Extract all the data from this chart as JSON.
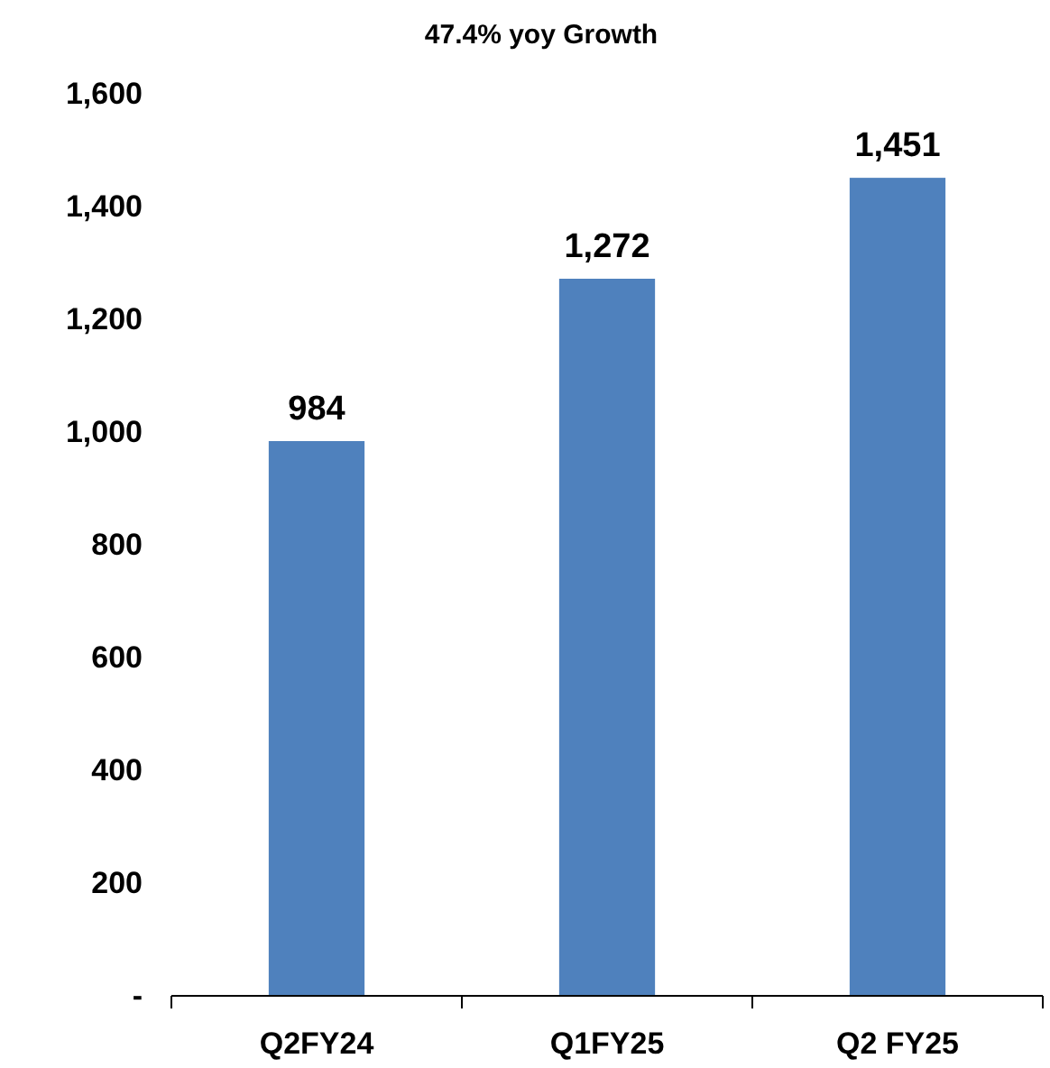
{
  "chart_data": {
    "type": "bar",
    "title": "47.4% yoy Growth",
    "categories": [
      "Q2FY24",
      "Q1FY25",
      "Q2 FY25"
    ],
    "values": [
      984,
      1272,
      1451
    ],
    "color": "#4f81bd",
    "ylim": [
      0,
      1600
    ],
    "yticks": [
      {
        "value": 0,
        "label": "-"
      },
      200,
      400,
      600,
      800,
      {
        "value": 1000,
        "label": "1,000"
      },
      {
        "value": 1200,
        "label": "1,200"
      },
      {
        "value": 1400,
        "label": "1,400"
      },
      {
        "value": 1600,
        "label": "1,600"
      }
    ],
    "value_labels": [
      "984",
      "1,272",
      "1,451"
    ],
    "grid": false
  }
}
